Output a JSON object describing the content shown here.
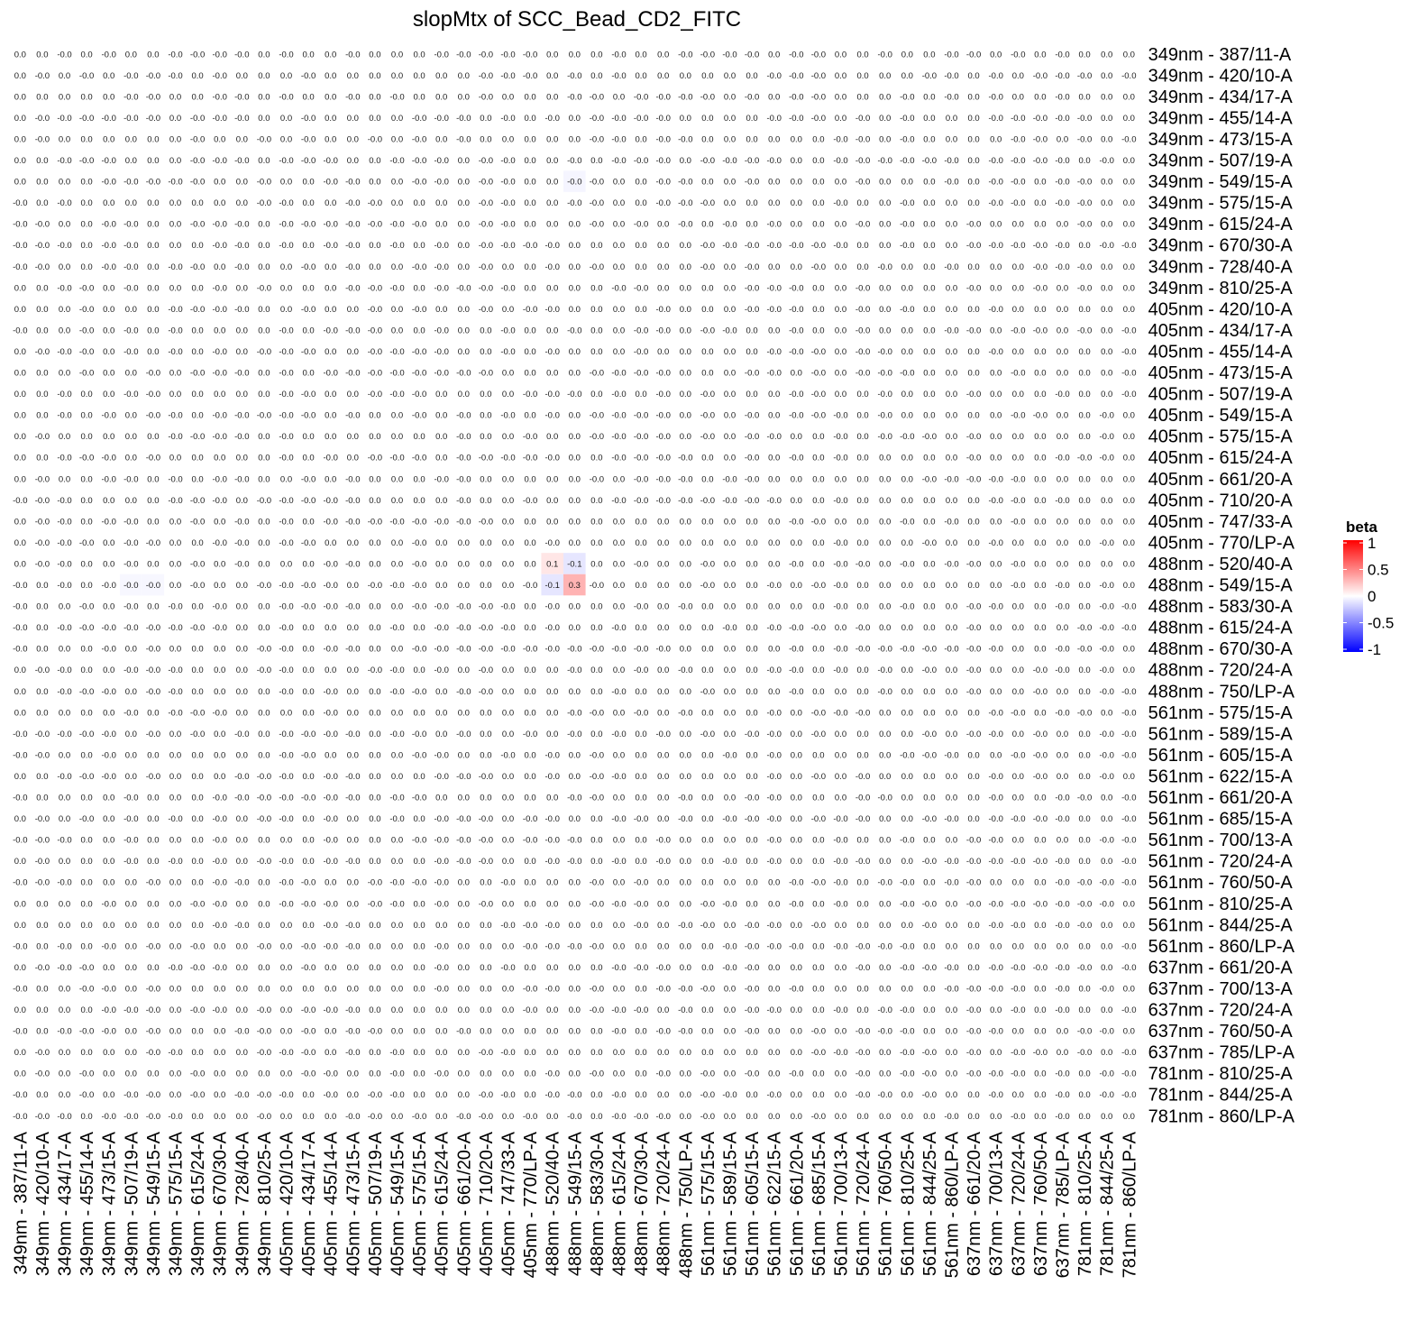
{
  "chart_data": {
    "type": "heatmap",
    "title": "slopMtx of SCC_Bead_CD2_FITC",
    "labels": [
      "349nm - 387/11-A",
      "349nm - 420/10-A",
      "349nm - 434/17-A",
      "349nm - 455/14-A",
      "349nm - 473/15-A",
      "349nm - 507/19-A",
      "349nm - 549/15-A",
      "349nm - 575/15-A",
      "349nm - 615/24-A",
      "349nm - 670/30-A",
      "349nm - 728/40-A",
      "349nm - 810/25-A",
      "405nm - 420/10-A",
      "405nm - 434/17-A",
      "405nm - 455/14-A",
      "405nm - 473/15-A",
      "405nm - 507/19-A",
      "405nm - 549/15-A",
      "405nm - 575/15-A",
      "405nm - 615/24-A",
      "405nm - 661/20-A",
      "405nm - 710/20-A",
      "405nm - 747/33-A",
      "405nm - 770/LP-A",
      "488nm - 520/40-A",
      "488nm - 549/15-A",
      "488nm - 583/30-A",
      "488nm - 615/24-A",
      "488nm - 670/30-A",
      "488nm - 720/24-A",
      "488nm - 750/LP-A",
      "561nm - 575/15-A",
      "561nm - 589/15-A",
      "561nm - 605/15-A",
      "561nm - 622/15-A",
      "561nm - 661/20-A",
      "561nm - 685/15-A",
      "561nm - 700/13-A",
      "561nm - 720/24-A",
      "561nm - 760/50-A",
      "561nm - 810/25-A",
      "561nm - 844/25-A",
      "561nm - 860/LP-A",
      "637nm - 661/20-A",
      "637nm - 700/13-A",
      "637nm - 720/24-A",
      "637nm - 760/50-A",
      "637nm - 785/LP-A",
      "781nm - 810/25-A",
      "781nm - 844/25-A",
      "781nm - 860/LP-A"
    ],
    "nonzero_cells": [
      {
        "row": "488nm - 520/40-A",
        "col": "488nm - 520/40-A",
        "value": 0.1
      },
      {
        "row": "488nm - 520/40-A",
        "col": "488nm - 549/15-A",
        "value": -0.1
      },
      {
        "row": "488nm - 549/15-A",
        "col": "488nm - 520/40-A",
        "value": -0.1
      },
      {
        "row": "488nm - 549/15-A",
        "col": "488nm - 549/15-A",
        "value": 0.3
      }
    ],
    "faint_cells": [
      {
        "row": "349nm - 549/15-A",
        "col": "488nm - 549/15-A",
        "value": -0.04
      },
      {
        "row": "488nm - 549/15-A",
        "col": "349nm - 507/19-A",
        "value": -0.03
      },
      {
        "row": "488nm - 549/15-A",
        "col": "349nm - 549/15-A",
        "value": -0.03
      }
    ],
    "negative_zero_seed": 20231,
    "legend": {
      "title": "beta",
      "ticks": [
        "1",
        "0.5",
        "0",
        "-0.5",
        "-1"
      ],
      "range": [
        -1,
        1
      ],
      "colors": {
        "low": "#0000ff",
        "mid": "#ffffff",
        "high": "#ff0000"
      }
    }
  }
}
